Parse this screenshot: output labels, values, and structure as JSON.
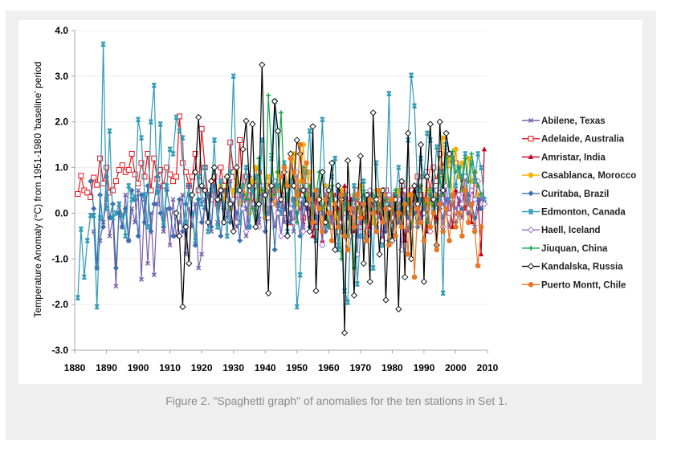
{
  "caption": "Figure 2. \"Spaghetti graph\" of anomalies for the ten stations in Set 1.",
  "chart_data": {
    "type": "line",
    "title": "",
    "xlabel": "",
    "ylabel": "Temperature Anomaly (°C) from 1951-1980 'baseline' period",
    "xlim": [
      1880,
      2010
    ],
    "ylim": [
      -3.0,
      4.0
    ],
    "x_ticks": [
      "1880",
      "1890",
      "1900",
      "1910",
      "1920",
      "1930",
      "1940",
      "1950",
      "1960",
      "1970",
      "1980",
      "1990",
      "2000",
      "2010"
    ],
    "y_ticks": [
      "4.0",
      "3.0",
      "2.0",
      "1.0",
      "0.0",
      "-1.0",
      "-2.0",
      "-3.0"
    ],
    "grid": "horizontal",
    "legend_position": "right",
    "series": [
      {
        "name": "Abilene, Texas",
        "color": "#7b5ea7",
        "marker": "x",
        "start": 1886,
        "values": [
          -0.4,
          -1.2,
          -0.6,
          -0.2,
          0.3,
          -0.5,
          -0.1,
          -1.6,
          0.2,
          -0.3,
          0.4,
          -0.6,
          0.1,
          -0.2,
          0.5,
          -1.45,
          0.3,
          -1.1,
          0.0,
          -1.35,
          0.2,
          0.6,
          -0.4,
          0.1,
          -0.7,
          0.3,
          -0.5,
          -0.2,
          0.4,
          -0.9,
          0.1,
          -0.3,
          0.2,
          -1.2,
          -0.9,
          0.3,
          0.0,
          -0.4,
          0.6,
          -0.2,
          0.3,
          0.5,
          -0.1,
          0.7,
          0.2,
          -0.3,
          0.4,
          0.1,
          -0.5,
          0.3,
          0.6,
          0.0,
          -0.2,
          0.4,
          -0.1,
          0.5,
          0.2,
          -0.3,
          0.1,
          0.4,
          -0.2,
          0.3,
          0.0,
          -0.4,
          0.2,
          0.1,
          -0.3,
          0.5,
          -0.1,
          0.2,
          -0.6,
          0.3,
          0.0,
          -0.2,
          0.4,
          -0.1,
          0.1,
          -0.7,
          0.3,
          -0.4,
          0.2,
          0.0,
          -0.3,
          0.4,
          0.1,
          -0.2,
          0.3,
          -0.5,
          0.2,
          0.0,
          -0.1,
          0.4,
          -0.3,
          0.2,
          0.1,
          0.0,
          -0.2,
          0.3,
          0.1,
          -0.4,
          0.2,
          0.0,
          0.3,
          -0.1,
          0.2,
          0.0,
          0.3,
          0.1,
          -0.2,
          0.4,
          0.2,
          0.0,
          -0.3,
          0.3,
          0.1,
          0.2,
          -0.1,
          0.4,
          0.0,
          0.2,
          -0.3,
          0.1,
          0.3
        ]
      },
      {
        "name": "Adelaide, Australia",
        "color": "#e8141c",
        "marker": "square-open",
        "start": 1881,
        "values": [
          0.42,
          0.82,
          0.5,
          0.45,
          0.35,
          0.78,
          0.62,
          1.2,
          0.65,
          1.0,
          0.45,
          0.5,
          0.7,
          0.95,
          1.05,
          0.9,
          0.95,
          1.3,
          0.85,
          0.65,
          1.1,
          0.8,
          1.3,
          0.5,
          1.2,
          0.75,
          0.95,
          0.6,
          1.0,
          0.85,
          0.7,
          0.8,
          2.12,
          1.1,
          0.9,
          0.6,
          0.8,
          1.3,
          0.5,
          1.85,
          1.0,
          0.4,
          0.3,
          0.8,
          0.2,
          1.0,
          0.6,
          0.3,
          1.55,
          0.9,
          0.4,
          1.6,
          0.3,
          0.8,
          0.5,
          0.2,
          0.6,
          0.9,
          0.4,
          0.1,
          0.7,
          0.3,
          0.5,
          0.2,
          0.4,
          0.0,
          0.6,
          -0.2,
          0.3,
          0.1,
          0.5,
          -0.1,
          0.2,
          0.4,
          0.0,
          -0.3,
          0.3,
          0.1,
          -0.2,
          0.4,
          0.2,
          0.0,
          -0.4,
          0.3,
          0.1,
          0.2,
          -0.1,
          0.3,
          0.5,
          -0.3,
          0.2,
          0.0,
          0.4,
          -0.2,
          0.1,
          0.3,
          0.0,
          0.5,
          0.2,
          -0.1,
          0.4,
          0.1,
          0.6,
          0.3,
          0.0,
          0.5,
          0.2,
          0.8,
          0.4,
          0.1,
          0.9,
          0.5,
          1.0,
          0.7,
          1.3,
          1.0,
          1.35,
          1.05,
          1.3,
          1.1
        ]
      },
      {
        "name": "Amristar, India",
        "color": "#c0001c",
        "marker": "triangle",
        "start": 1948,
        "values": [
          0.6,
          0.9,
          0.3,
          0.5,
          -0.2,
          0.4,
          0.1,
          -0.5,
          0.3,
          0.0,
          -0.6,
          0.5,
          0.2,
          -0.3,
          0.4,
          0.1,
          -0.2,
          0.6,
          0.0,
          0.3,
          -0.4,
          0.2,
          0.1,
          -0.1,
          0.4,
          -0.3,
          0.2,
          0.5,
          0.0,
          -0.5,
          0.3,
          0.1,
          -0.2,
          0.4,
          0.0,
          0.2,
          -0.6,
          0.3,
          0.1,
          0.5,
          -0.2,
          0.0,
          0.3,
          -0.4,
          0.4,
          0.1,
          -0.1,
          0.2,
          0.6,
          0.0,
          0.3,
          -0.3,
          0.5,
          0.2,
          0.8,
          0.1,
          0.4,
          -0.2,
          0.9,
          0.3,
          -0.9,
          1.4
        ]
      },
      {
        "name": "Casablanca, Morocco",
        "color": "#f5b400",
        "marker": "circle",
        "start": 1926,
        "values": [
          0.6,
          0.3,
          0.8,
          0.1,
          0.5,
          0.9,
          0.2,
          0.6,
          0.4,
          0.0,
          0.7,
          1.0,
          0.3,
          0.5,
          -0.1,
          0.8,
          0.4,
          0.2,
          0.9,
          0.5,
          1.0,
          0.3,
          0.6,
          1.3,
          0.2,
          0.7,
          1.5,
          0.4,
          0.9,
          0.1,
          0.5,
          0.3,
          -0.2,
          0.6,
          0.2,
          0.4,
          -0.1,
          0.3,
          0.5,
          0.0,
          0.2,
          -0.3,
          0.4,
          0.1,
          0.6,
          0.0,
          0.2,
          0.3,
          -0.2,
          0.5,
          0.1,
          0.4,
          -0.1,
          0.3,
          0.0,
          0.2,
          0.5,
          -0.3,
          0.1,
          0.4,
          0.0,
          0.2,
          -0.2,
          0.3,
          0.1,
          0.5,
          0.2,
          0.0,
          0.4,
          0.9,
          1.65,
          0.6,
          1.2,
          0.3,
          1.4,
          0.8,
          1.1,
          0.5,
          1.2,
          0.7,
          0.9,
          0.4
        ]
      },
      {
        "name": "Curitaba, Brazil",
        "color": "#3d6fb0",
        "marker": "diamond",
        "start": 1885,
        "values": [
          0.7,
          0.1,
          -1.2,
          0.4,
          -0.3,
          0.8,
          -0.1,
          0.2,
          -1.2,
          0.0,
          -0.3,
          0.1,
          -0.6,
          0.5,
          0.3,
          -0.5,
          0.4,
          -0.2,
          0.6,
          -0.4,
          0.2,
          0.8,
          0.0,
          -0.3,
          0.5,
          0.1,
          -0.5,
          0.0,
          0.3,
          -0.4,
          0.2,
          0.6,
          0.0,
          -0.7,
          0.3,
          -0.2,
          0.1,
          0.4,
          -0.3,
          0.6,
          0.2,
          -0.5,
          0.1,
          0.5,
          -0.2,
          0.3,
          0.0,
          -0.6,
          0.4,
          0.1,
          -0.3,
          0.5,
          0.2,
          -0.1,
          0.4,
          -0.4,
          0.0,
          0.3,
          -0.8,
          0.2,
          -0.5,
          0.1,
          0.4,
          -0.2,
          0.3,
          0.0,
          -0.5,
          0.2,
          0.1,
          -0.3,
          0.4,
          -0.1,
          0.2,
          0.0,
          -0.4,
          0.3,
          -0.2,
          0.1,
          0.5,
          -0.3,
          0.2,
          -0.1,
          0.0,
          0.3,
          -0.5,
          0.1,
          0.4,
          -0.2,
          0.2,
          0.0,
          -0.3,
          0.3,
          0.1,
          -0.4,
          0.2,
          0.0,
          0.4,
          -0.2,
          0.1,
          0.3,
          -0.1,
          0.2,
          0.0,
          -0.3,
          0.3,
          0.1,
          -0.2,
          0.4,
          0.0,
          0.2,
          0.1,
          -0.1,
          0.3,
          0.0,
          0.2,
          -0.2,
          0.4,
          0.1,
          0.3,
          0.0,
          0.2,
          -0.1,
          0.3,
          0.1
        ]
      },
      {
        "name": "Edmonton, Canada",
        "color": "#2e9bb5",
        "marker": "x-bar",
        "start": 1881,
        "values": [
          -1.85,
          -0.35,
          -1.4,
          -0.6,
          -0.05,
          -0.05,
          -2.05,
          -0.1,
          3.7,
          0.1,
          1.8,
          -0.1,
          0.0,
          0.2,
          -0.05,
          -0.5,
          0.6,
          0.3,
          0.35,
          2.05,
          1.65,
          0.4,
          -0.3,
          2.0,
          2.8,
          0.45,
          1.95,
          -0.2,
          0.6,
          1.4,
          1.3,
          2.1,
          1.8,
          1.65,
          -0.2,
          0.4,
          0.0,
          -0.6,
          0.8,
          0.2,
          1.0,
          -0.4,
          0.5,
          1.6,
          -0.3,
          0.7,
          0.2,
          -0.5,
          0.9,
          3.0,
          0.5,
          -0.2,
          0.6,
          1.0,
          -0.3,
          0.5,
          0.8,
          0.2,
          1.6,
          0.4,
          -0.1,
          1.2,
          2.45,
          0.6,
          0.0,
          1.1,
          -0.4,
          0.7,
          0.2,
          -2.05,
          -1.35,
          0.3,
          0.9,
          1.8,
          0.1,
          -0.6,
          0.5,
          2.05,
          0.3,
          -0.3,
          0.8,
          1.2,
          -0.8,
          0.1,
          -1.7,
          -1.95,
          -0.3,
          0.6,
          -1.55,
          -0.5,
          0.7,
          -0.2,
          0.3,
          -1.2,
          1.1,
          0.4,
          -0.7,
          0.2,
          2.62,
          -0.5,
          0.3,
          1.0,
          -0.2,
          0.2,
          1.6,
          3.02,
          2.35,
          0.5,
          1.2,
          0.8,
          1.75,
          1.6,
          0.5,
          1.45,
          0.9,
          -1.75,
          1.5,
          0.3,
          1.2,
          0.6,
          1.0,
          0.8,
          1.3,
          0.2,
          1.1,
          0.7,
          1.3,
          1.0,
          0.3
        ]
      },
      {
        "name": "Haell, Iceland",
        "color": "#9966cc",
        "marker": "diamond-open",
        "start": 1930,
        "values": [
          0.3,
          -0.2,
          0.5,
          0.1,
          -0.4,
          0.8,
          0.2,
          0.0,
          -0.3,
          0.6,
          0.4,
          -0.1,
          0.2,
          0.7,
          0.0,
          -0.5,
          0.3,
          0.5,
          0.1,
          -0.2,
          0.9,
          0.3,
          -0.4,
          0.6,
          0.2,
          -0.1,
          0.4,
          0.0,
          -0.7,
          0.5,
          0.1,
          -0.3,
          0.3,
          0.6,
          -0.2,
          0.0,
          0.4,
          -0.5,
          0.2,
          -0.9,
          0.3,
          0.1,
          -0.4,
          0.5,
          0.0,
          -0.2,
          0.3,
          -0.6,
          0.2,
          0.4,
          -0.1,
          0.0,
          0.3,
          -0.8,
          0.5,
          0.1,
          -0.3,
          0.2,
          0.4,
          -0.2,
          0.0,
          0.3,
          -0.4,
          0.1,
          0.5,
          0.2,
          -0.3,
          0.6,
          0.0,
          0.3,
          -0.1,
          0.4,
          0.2,
          0.8,
          0.1,
          0.5,
          0.3,
          0.7,
          0.4,
          0.2
        ]
      },
      {
        "name": "Jiuquan, China",
        "color": "#17a24a",
        "marker": "plus",
        "start": 1934,
        "values": [
          0.3,
          0.8,
          0.1,
          -0.3,
          1.2,
          0.5,
          0.0,
          2.58,
          1.3,
          0.4,
          0.9,
          2.2,
          0.6,
          0.3,
          1.3,
          0.8,
          -0.2,
          0.5,
          1.0,
          0.2,
          0.6,
          -0.1,
          0.4,
          0.9,
          0.1,
          0.3,
          -0.3,
          0.6,
          0.2,
          0.0,
          -1.0,
          0.4,
          -0.5,
          0.2,
          -1.2,
          0.3,
          0.0,
          0.5,
          -0.2,
          0.1,
          0.4,
          -0.4,
          0.2,
          0.0,
          0.3,
          -0.6,
          0.1,
          0.5,
          -0.1,
          0.2,
          0.0,
          0.3,
          -0.3,
          0.4,
          0.1,
          0.6,
          0.2,
          -0.2,
          0.5,
          0.0,
          0.3,
          0.8,
          0.4,
          1.2,
          0.6,
          1.35,
          0.9,
          1.0,
          0.5,
          1.2,
          0.7,
          1.3,
          0.9,
          0.6,
          0.4
        ]
      },
      {
        "name": "Kandalska, Russia",
        "color": "#000000",
        "marker": "diamond-open",
        "start": 1912,
        "values": [
          0.0,
          -0.5,
          -2.05,
          -0.3,
          -1.1,
          0.4,
          0.9,
          2.1,
          0.6,
          0.5,
          -0.2,
          0.7,
          1.0,
          0.3,
          0.5,
          -0.2,
          0.8,
          0.2,
          -0.4,
          1.0,
          0.5,
          1.4,
          2.02,
          0.6,
          1.95,
          -0.3,
          0.2,
          3.25,
          0.4,
          -1.75,
          0.6,
          2.45,
          1.8,
          0.3,
          0.9,
          -0.5,
          1.3,
          0.6,
          1.6,
          1.3,
          0.5,
          0.2,
          -0.4,
          1.9,
          -1.7,
          0.3,
          0.9,
          -0.2,
          0.5,
          1.1,
          -0.8,
          0.6,
          0.3,
          -2.62,
          1.15,
          0.0,
          -1.8,
          0.2,
          1.25,
          -1.1,
          0.4,
          -1.5,
          2.2,
          0.3,
          -0.9,
          0.5,
          -1.9,
          0.1,
          -0.6,
          0.3,
          -2.1,
          0.7,
          -1.4,
          1.75,
          -1.0,
          0.6,
          0.2,
          1.5,
          -1.5,
          0.8,
          1.95,
          0.3,
          -0.7,
          2.0,
          0.5,
          1.75,
          1.3
        ]
      },
      {
        "name": "Puerto Montt, Chile",
        "color": "#e87722",
        "marker": "circle",
        "start": 1945,
        "values": [
          0.8,
          1.0,
          0.6,
          1.2,
          0.9,
          0.4,
          1.5,
          0.7,
          1.1,
          0.3,
          -0.2,
          0.5,
          0.1,
          -0.4,
          0.3,
          0.0,
          -0.6,
          0.2,
          -0.3,
          0.4,
          -0.5,
          -0.8,
          0.1,
          -0.3,
          0.4,
          -0.1,
          0.2,
          -0.6,
          0.3,
          0.0,
          -0.4,
          0.5,
          -0.2,
          0.1,
          -0.7,
          0.3,
          -0.5,
          0.0,
          -0.3,
          0.2,
          -0.9,
          0.4,
          -1.4,
          0.1,
          -0.2,
          -0.6,
          0.3,
          -0.3,
          0.0,
          -0.8,
          0.2,
          -0.4,
          0.1,
          -0.6,
          0.4,
          -0.3,
          0.0,
          -0.5,
          0.5,
          -0.2,
          0.2,
          -0.4,
          -1.15,
          -0.3
        ]
      }
    ]
  }
}
